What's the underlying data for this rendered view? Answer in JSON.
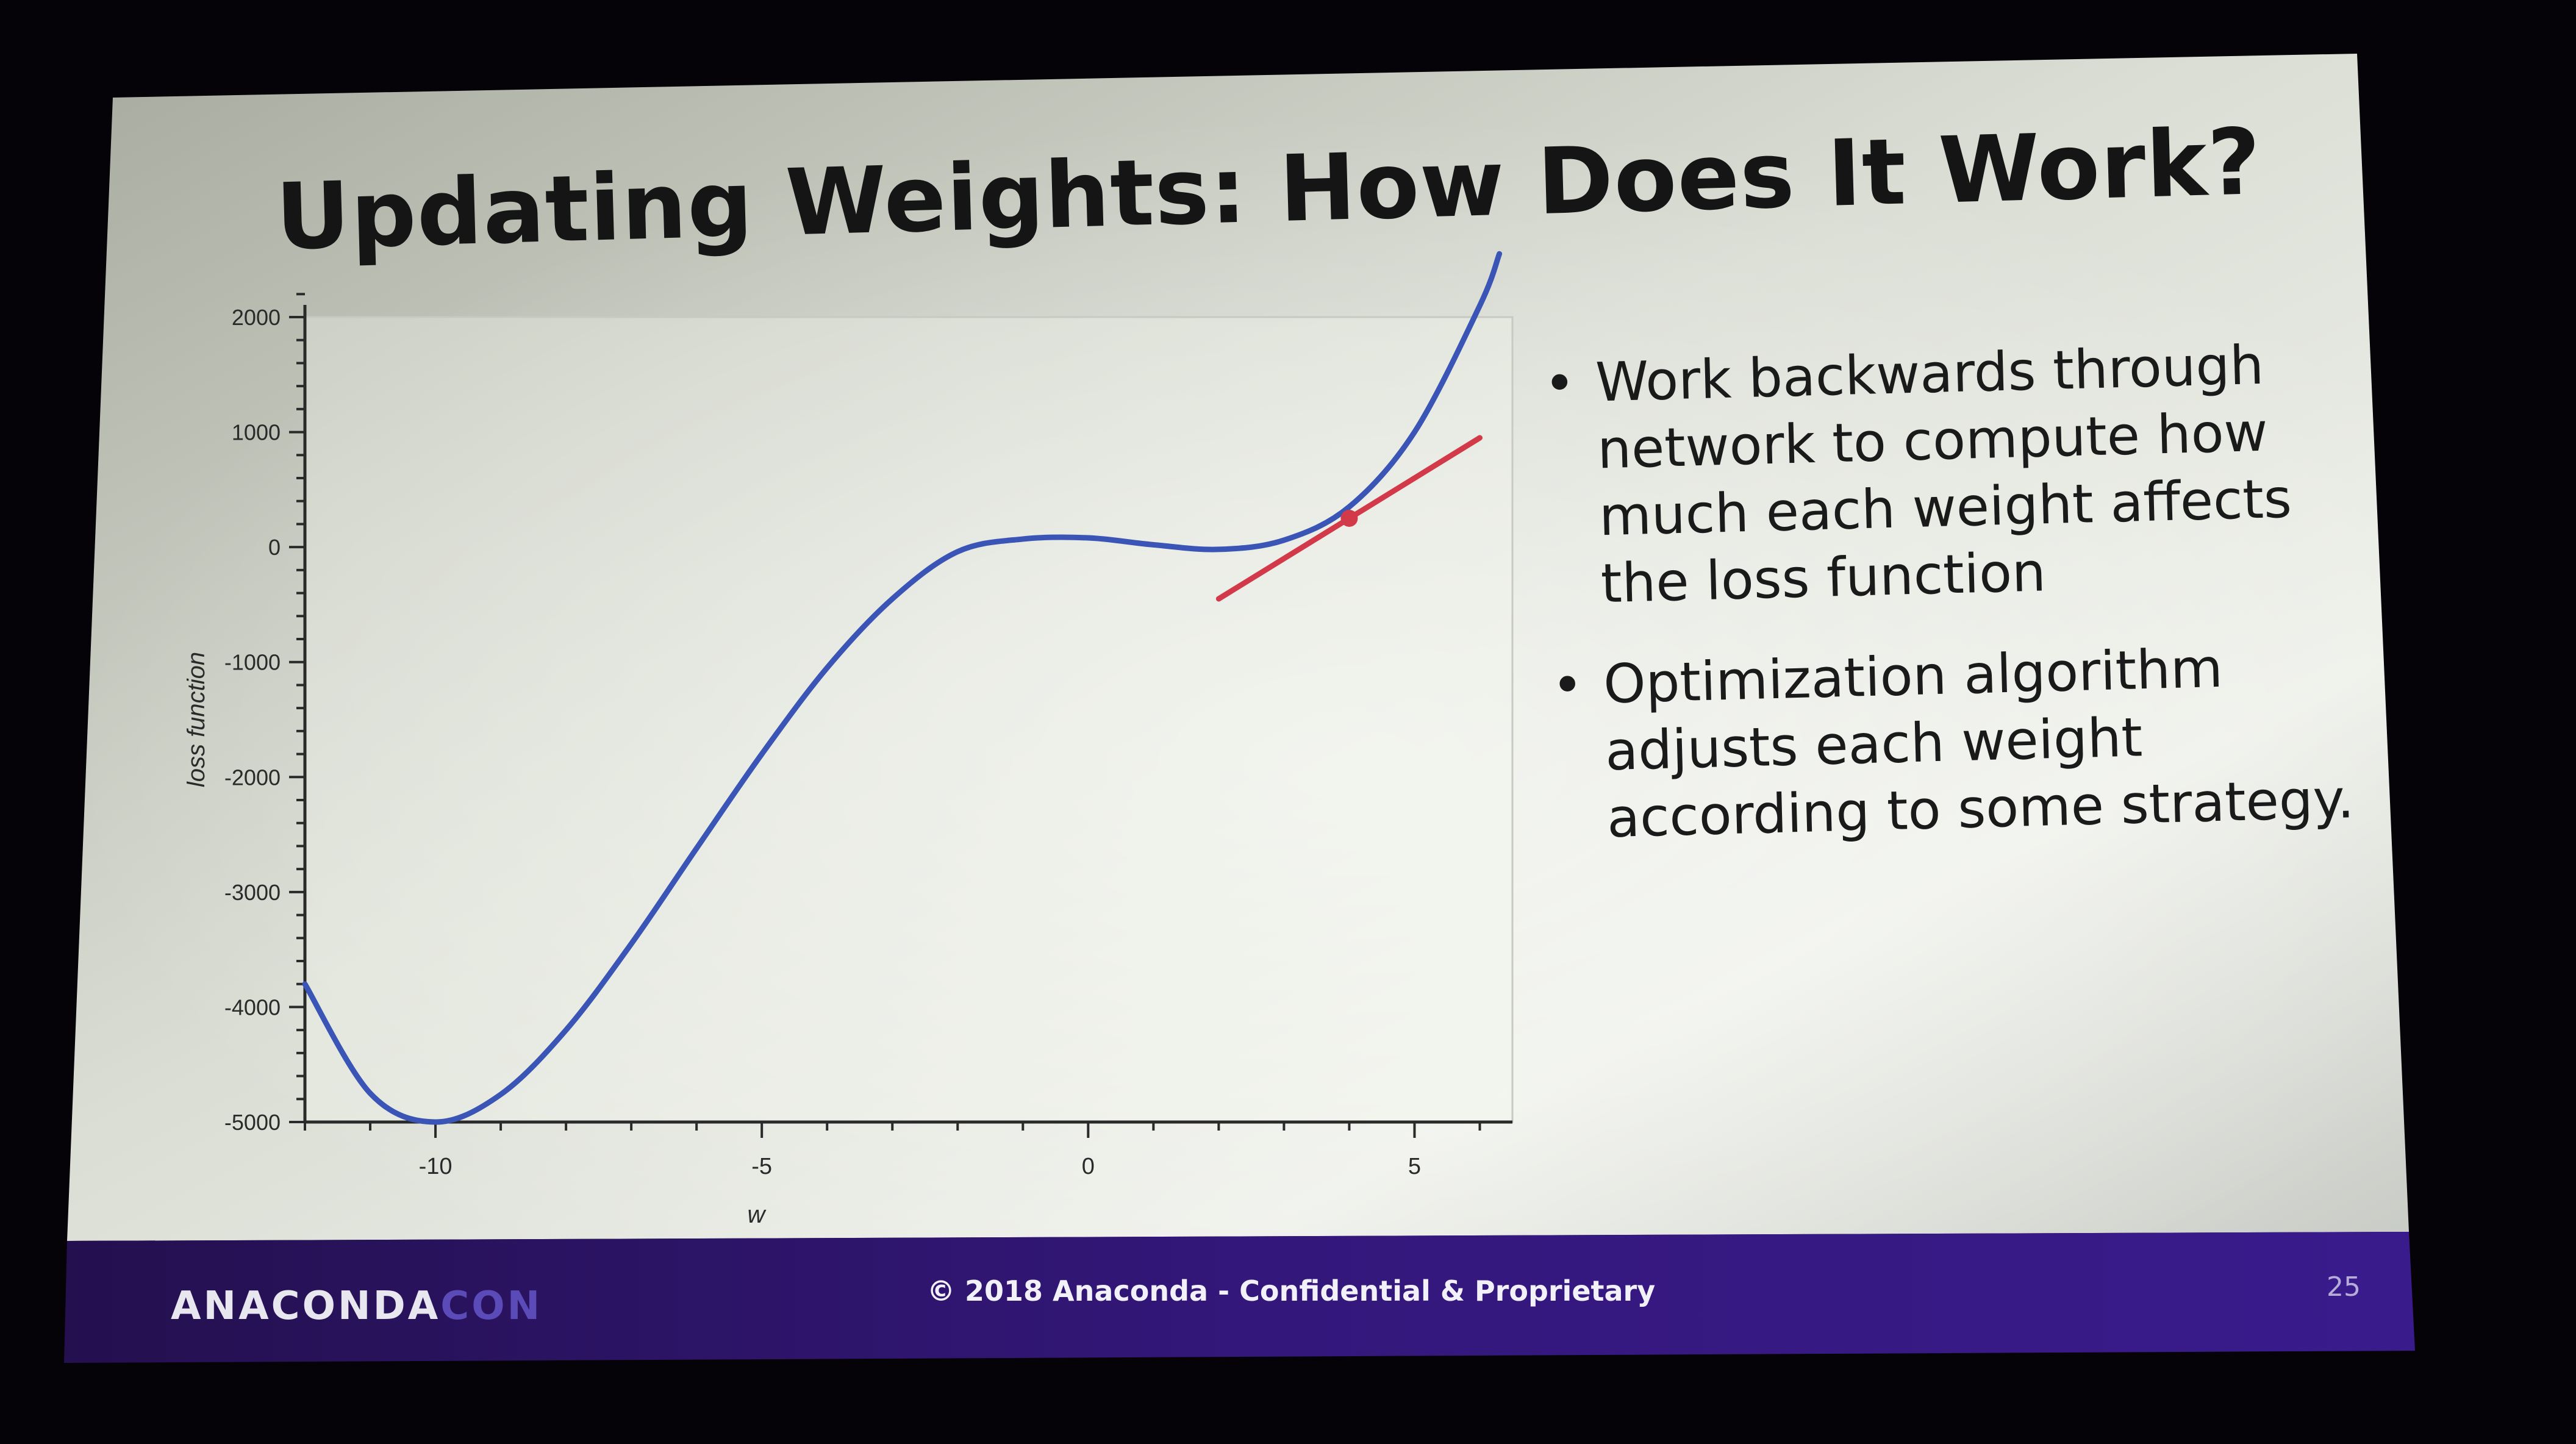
{
  "slide": {
    "title": "Updating Weights: How Does It Work?",
    "bullets": [
      "Work backwards through network to compute how much each weight affects the loss function",
      "Optimization algorithm adjusts each weight according to some strategy."
    ]
  },
  "footer": {
    "logo_main": "ANACONDA",
    "logo_accent": "CON",
    "copyright": "© 2018 Anaconda - Confidential & Proprietary",
    "page_number": "25"
  },
  "chart_data": {
    "type": "line",
    "title": "",
    "xlabel": "w",
    "ylabel": "loss function",
    "xlim": [
      -12,
      6.5
    ],
    "ylim": [
      -5000,
      2000
    ],
    "x_ticks": [
      -10,
      -5,
      0,
      5
    ],
    "y_ticks": [
      2000,
      1000,
      0,
      -1000,
      -2000,
      -3000,
      -4000,
      -5000
    ],
    "grid": false,
    "legend": "none",
    "colors": {
      "curve": "#3a55b5",
      "tangent": "#d23a4a",
      "point": "#d23a4a"
    },
    "series": [
      {
        "x": [
          -12,
          -11,
          -10,
          -9,
          -8,
          -7,
          -6,
          -5,
          -4,
          -3,
          -2,
          -1,
          0,
          1,
          2,
          3,
          4,
          5,
          6,
          6.3
        ],
        "y": [
          -3800,
          -4750,
          -5000,
          -4760,
          -4200,
          -3450,
          -2620,
          -1800,
          -1050,
          -450,
          -40,
          70,
          80,
          20,
          -20,
          60,
          350,
          1000,
          2100,
          2550
        ]
      }
    ],
    "tangent_line": {
      "x": [
        2,
        6
      ],
      "y": [
        -450,
        950
      ]
    },
    "highlight_point": {
      "x": 4,
      "y": 250
    }
  }
}
